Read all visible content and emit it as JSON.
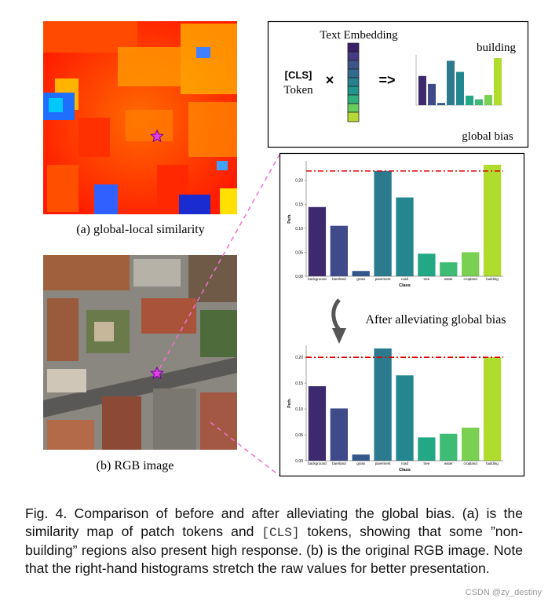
{
  "panel_a": {
    "caption": "(a) global-local similarity"
  },
  "panel_b": {
    "caption": "(b) RGB image"
  },
  "bias_box": {
    "embedding_label": "Text Embedding",
    "token_bold": "[CLS]",
    "token_label": "Token",
    "times": "×",
    "arrow": "=>",
    "class_label": "building",
    "box_label": "global bias"
  },
  "transition_label": "After alleviating global bias",
  "charts": [
    {
      "type": "bar",
      "ylabel": "Perh.",
      "xlabel": "Class",
      "categories": [
        "background",
        "bareland",
        "grass",
        "pavement",
        "road",
        "tree",
        "water",
        "cropland",
        "building"
      ],
      "values": [
        0.144,
        0.105,
        0.011,
        0.219,
        0.164,
        0.047,
        0.029,
        0.05,
        0.232
      ],
      "colors": [
        "#3d2a6e",
        "#3f4a8a",
        "#34578c",
        "#2b7a8e",
        "#24868e",
        "#22a884",
        "#3fbc73",
        "#7ad151",
        "#b0dc2e"
      ],
      "bias_line": 0.219,
      "ylim": [
        0,
        0.24
      ],
      "yticks": [
        {
          "value": 0,
          "label": "0.00"
        },
        {
          "value": 0.05,
          "label": "0.05"
        },
        {
          "value": 0.1,
          "label": "0.10"
        },
        {
          "value": 0.15,
          "label": "0.15"
        },
        {
          "value": 0.2,
          "label": "0.20"
        }
      ]
    },
    {
      "type": "bar",
      "ylabel": "Perh.",
      "xlabel": "Class",
      "categories": [
        "background",
        "bareland",
        "grass",
        "pavement",
        "road",
        "tree",
        "water",
        "cropland",
        "building"
      ],
      "values": [
        0.144,
        0.101,
        0.012,
        0.217,
        0.165,
        0.045,
        0.052,
        0.064,
        0.2
      ],
      "colors": [
        "#3d2a6e",
        "#3f4a8a",
        "#34578c",
        "#2b7a8e",
        "#24868e",
        "#22a884",
        "#3fbc73",
        "#7ad151",
        "#b0dc2e"
      ],
      "bias_line": 0.2,
      "ylim": [
        0,
        0.223
      ],
      "yticks": [
        {
          "value": 0,
          "label": "0.00"
        },
        {
          "value": 0.05,
          "label": "0.05"
        },
        {
          "value": 0.1,
          "label": "0.10"
        },
        {
          "value": 0.15,
          "label": "0.15"
        },
        {
          "value": 0.2,
          "label": "0.20"
        }
      ]
    }
  ],
  "caption": {
    "before": "Fig. 4. Comparison of before and after alleviating the global bias. (a) is the similarity map of patch tokens and ",
    "code": "[CLS]",
    "after": " tokens, showing that some ”non-building” regions also present high response. (b) is the original RGB image. Note that the right-hand histograms stretch the raw values for better presentation."
  },
  "watermark": "CSDN @zy_destiny"
}
